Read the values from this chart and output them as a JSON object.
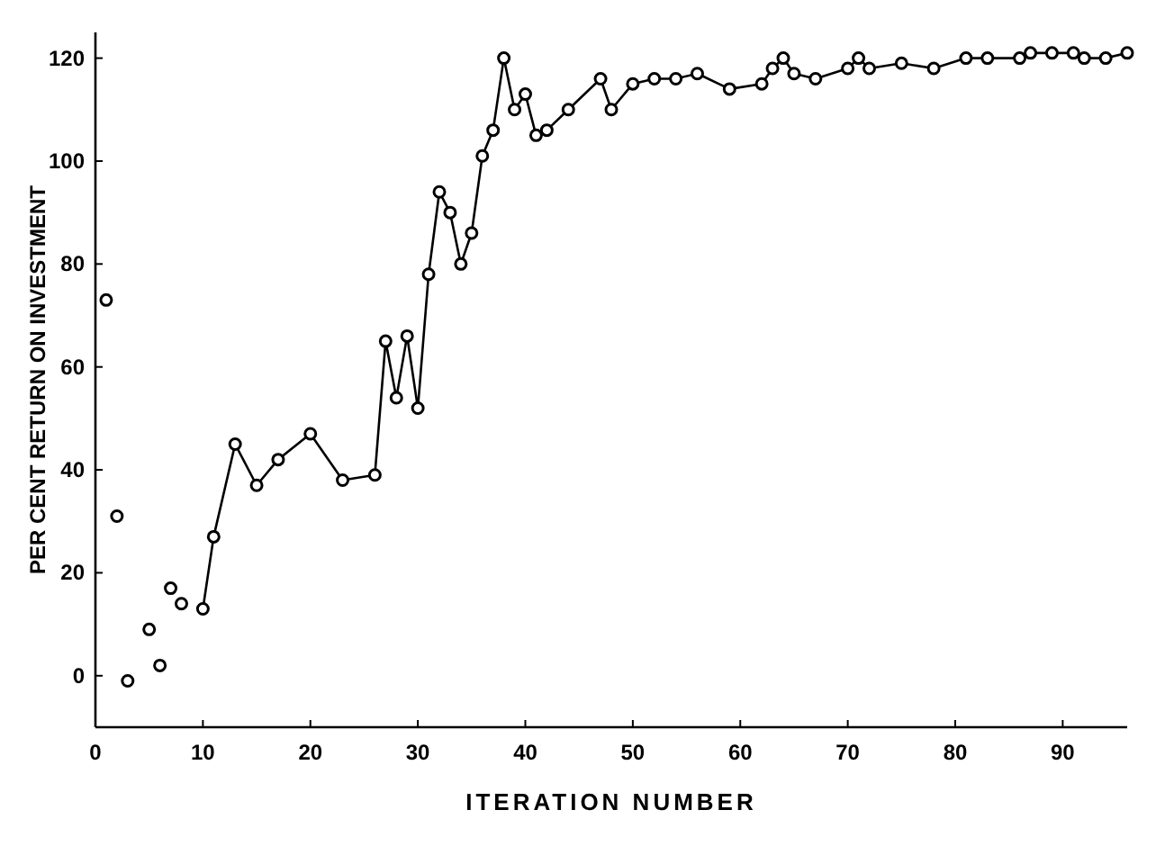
{
  "chart_data": {
    "type": "line",
    "xlabel": "ITERATION NUMBER",
    "ylabel": "PER CENT RETURN ON INVESTMENT",
    "xlim": [
      0,
      96
    ],
    "ylim": [
      -10,
      125
    ],
    "xticks": [
      0,
      10,
      20,
      30,
      40,
      50,
      60,
      70,
      80,
      90
    ],
    "yticks": [
      0,
      20,
      40,
      60,
      80,
      100,
      120
    ],
    "marker": "circle",
    "line_style": "solid",
    "grid": false,
    "series": [
      {
        "type": "scatter",
        "color": "#000000",
        "x": [
          1,
          2,
          3,
          5,
          6,
          7,
          8
        ],
        "values": [
          73,
          31,
          -1,
          9,
          2,
          17,
          14
        ]
      },
      {
        "color": "#000000",
        "x": [
          10,
          11,
          13,
          15,
          17,
          20,
          23,
          26,
          27,
          28,
          29,
          30,
          31,
          32,
          33,
          34,
          35,
          36,
          37,
          38,
          39,
          40,
          41,
          42,
          44,
          47,
          48,
          50,
          52,
          54,
          56,
          59,
          62,
          63,
          64,
          65,
          67,
          70,
          71,
          72,
          75,
          78,
          81,
          83,
          86,
          87,
          89,
          91,
          92,
          94,
          96
        ],
        "values": [
          13,
          27,
          45,
          37,
          42,
          47,
          38,
          39,
          65,
          54,
          66,
          52,
          78,
          94,
          90,
          80,
          86,
          101,
          106,
          120,
          110,
          113,
          105,
          106,
          110,
          116,
          110,
          115,
          116,
          116,
          117,
          114,
          115,
          118,
          120,
          117,
          116,
          118,
          120,
          118,
          119,
          118,
          120,
          120,
          120,
          121,
          121,
          121,
          120,
          120,
          121
        ]
      }
    ]
  }
}
